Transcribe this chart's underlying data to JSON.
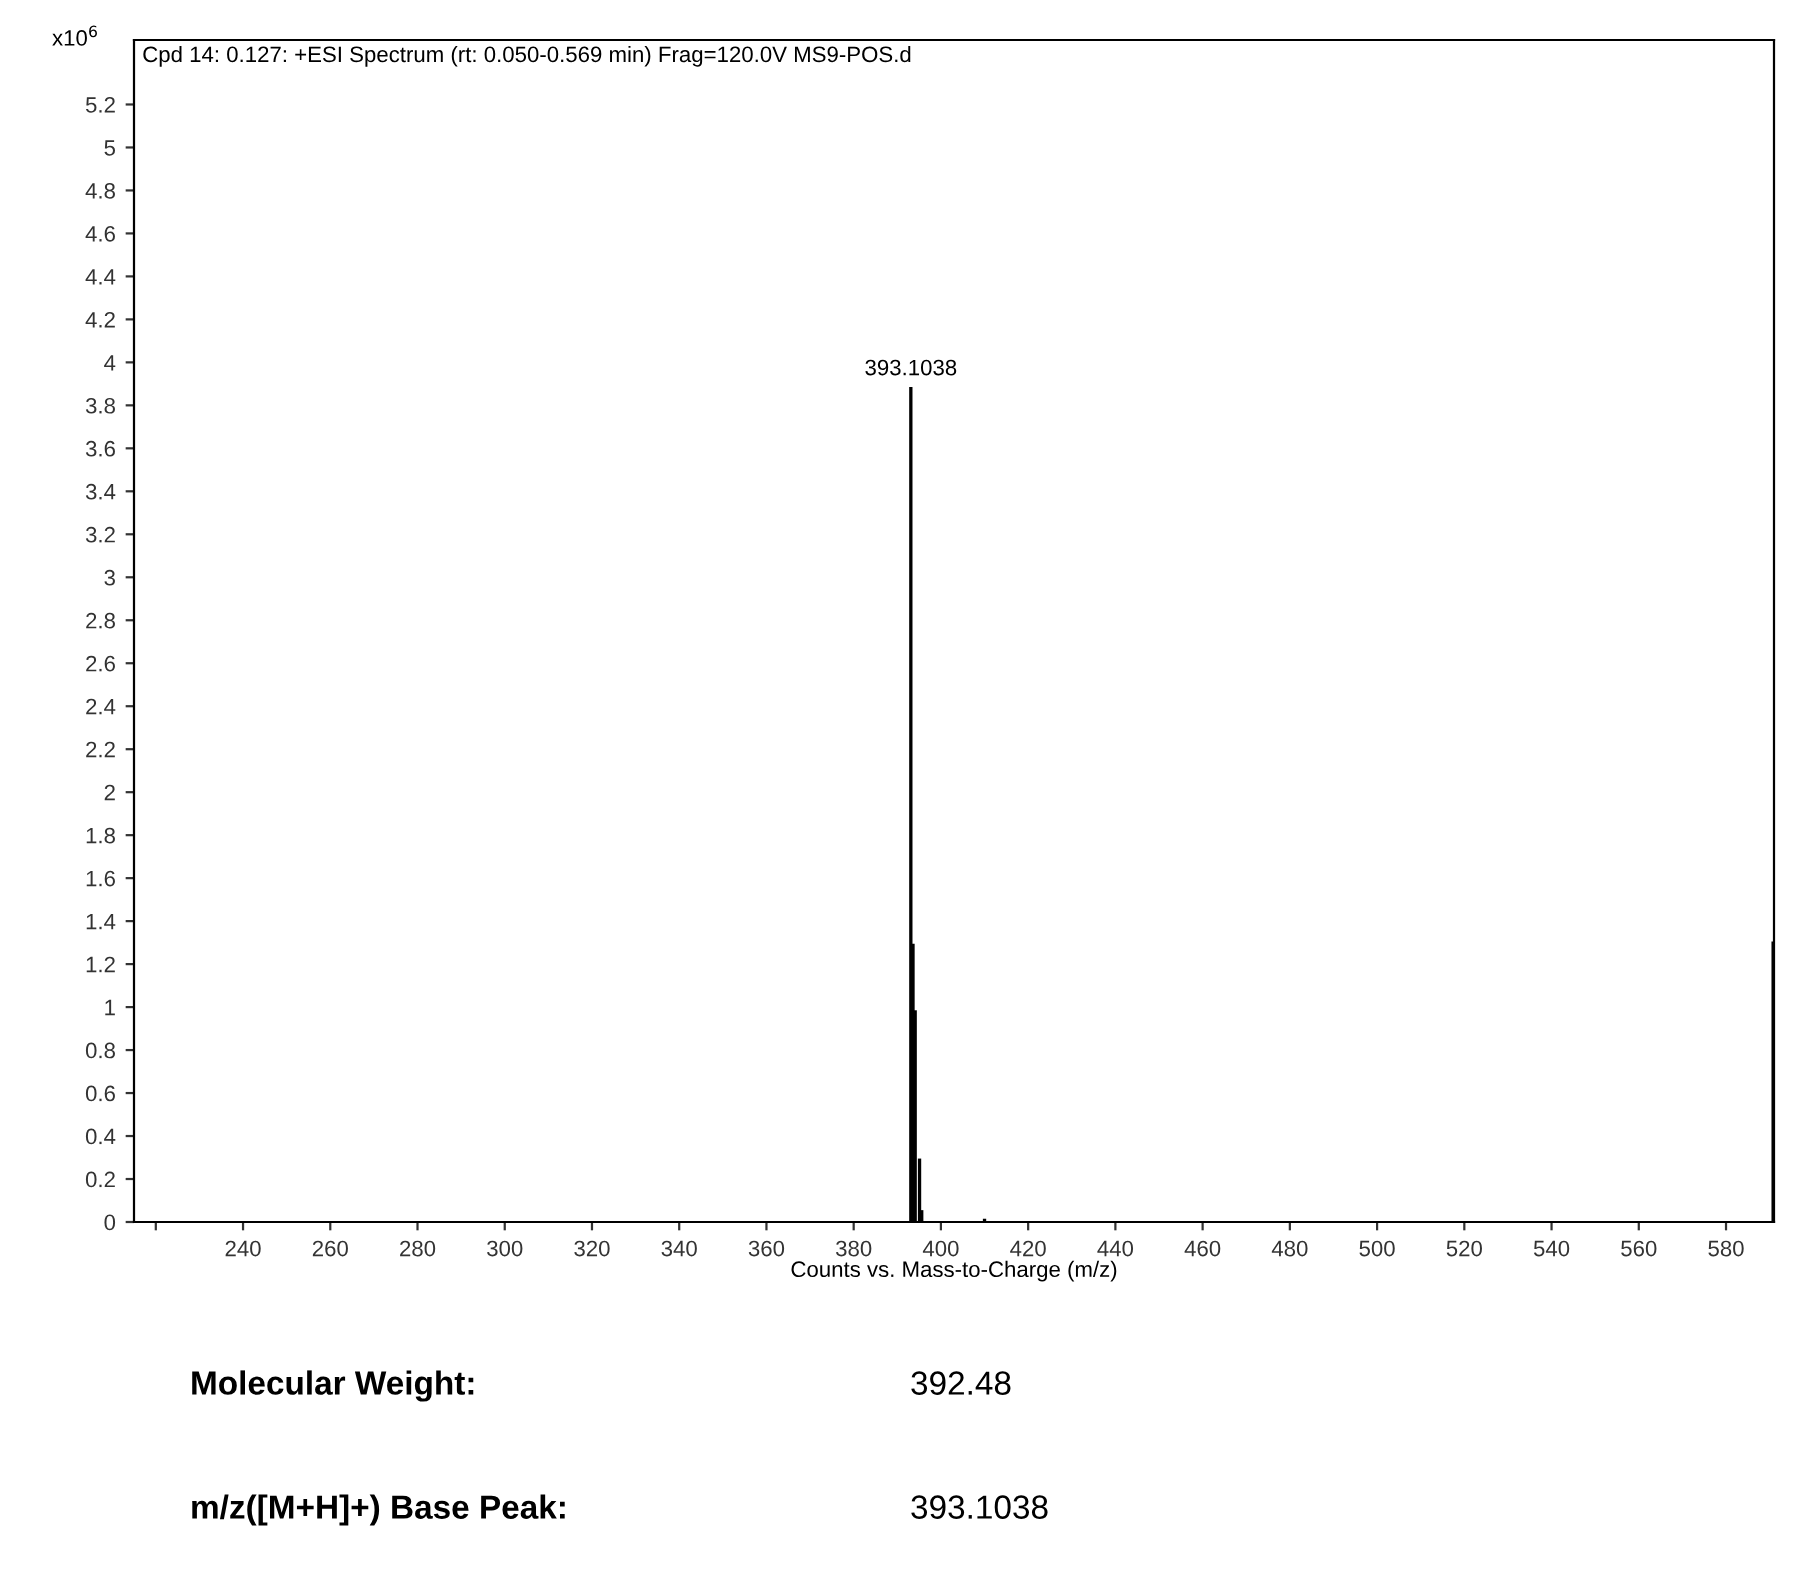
{
  "chart_data": {
    "type": "bar",
    "title": "Cpd 14: 0.127: +ESI Spectrum (rt: 0.050-0.569 min) Frag=120.0V MS9-POS.d",
    "xlabel": "Counts vs. Mass-to-Charge (m/z)",
    "ylabel": "x10$^{6}$",
    "x": [
      393.1038,
      393.6,
      394.1,
      395.1,
      395.6,
      410,
      590.8
    ],
    "values": [
      3.88,
      1.29,
      0.98,
      0.29,
      0.05,
      0.01,
      1.3
    ],
    "color": "#000000",
    "xlim": [
      215,
      591
    ],
    "xticks": [
      {
        "value": 220,
        "label": null
      },
      240,
      260,
      280,
      300,
      320,
      340,
      360,
      380,
      400,
      420,
      440,
      460,
      480,
      500,
      520,
      540,
      560,
      580
    ],
    "ylim": [
      0,
      5.5
    ],
    "yticks": [
      0,
      0.2,
      0.4,
      0.6,
      0.8,
      1,
      1.2,
      1.4,
      1.6,
      1.8,
      2,
      2.2,
      2.4,
      2.6,
      2.8,
      3,
      3.2,
      3.4,
      3.6,
      3.8,
      4,
      4.2,
      4.4,
      4.6,
      4.8,
      5,
      5.2
    ],
    "grid": false,
    "legend": false,
    "annotations": [
      {
        "text": "393.1038",
        "x": 393.1038,
        "y": 3.88
      },
      "Molecular Weight:",
      "392.48",
      "m/z([M+H]+) Base Peak:",
      "393.1038"
    ]
  }
}
